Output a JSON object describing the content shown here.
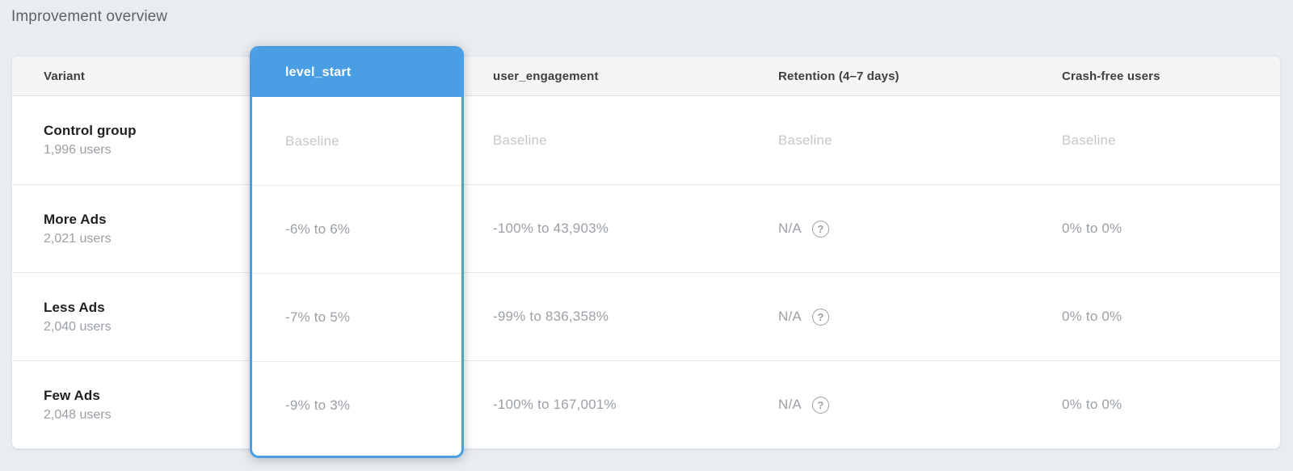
{
  "title": "Improvement overview",
  "colors": {
    "accent": "#4A9EE4",
    "baseline_text": "#C4C8CC",
    "value_text": "#9AA0A6"
  },
  "table": {
    "columns": {
      "variant": "Variant",
      "level_start": "level_start",
      "user_engagement": "user_engagement",
      "retention": "Retention (4–7 days)",
      "crash_free": "Crash-free users"
    },
    "help_icon": "?",
    "rows": [
      {
        "variant": "Control group",
        "users": "1,996 users",
        "level_start": "Baseline",
        "user_engagement": "Baseline",
        "retention": "Baseline",
        "crash_free": "Baseline"
      },
      {
        "variant": "More Ads",
        "users": "2,021 users",
        "level_start": "-6% to 6%",
        "user_engagement": "-100% to 43,903%",
        "retention": "N/A",
        "crash_free": "0% to 0%"
      },
      {
        "variant": "Less Ads",
        "users": "2,040 users",
        "level_start": "-7% to 5%",
        "user_engagement": "-99% to 836,358%",
        "retention": "N/A",
        "crash_free": "0% to 0%"
      },
      {
        "variant": "Few Ads",
        "users": "2,048 users",
        "level_start": "-9% to 3%",
        "user_engagement": "-100% to 167,001%",
        "retention": "N/A",
        "crash_free": "0% to 0%"
      }
    ]
  }
}
